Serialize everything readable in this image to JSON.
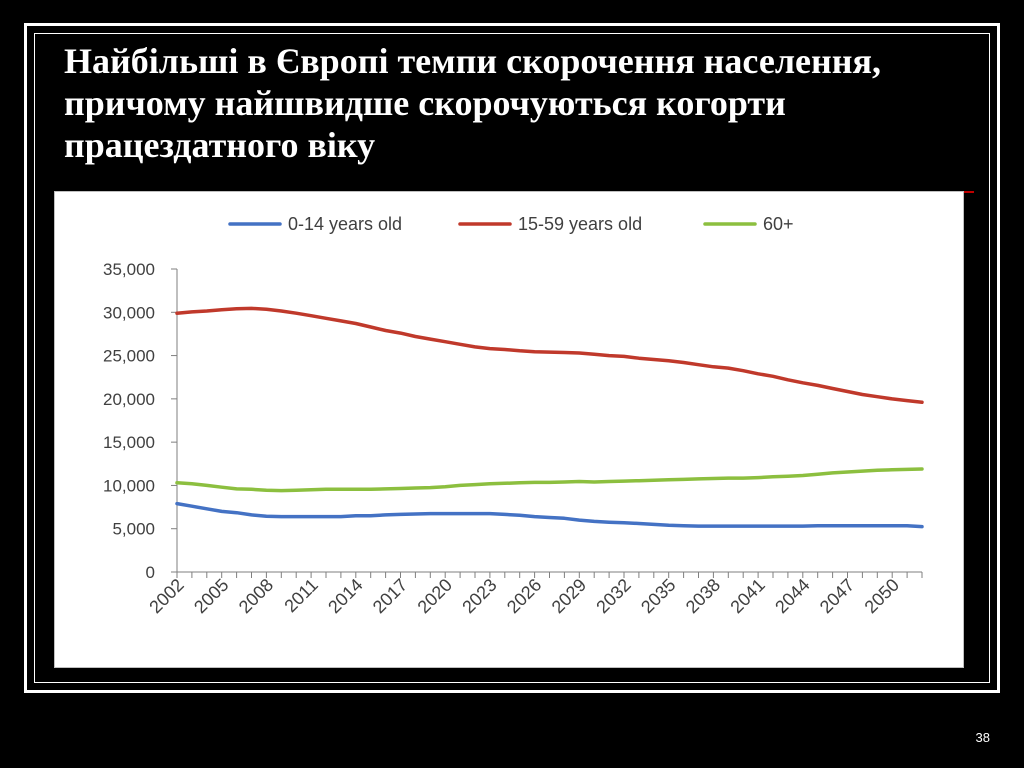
{
  "slide": {
    "title_line1": "Найбільші в Європі темпи скорочення населення,",
    "title_line2": "причому найшвидше скорочуються когорти",
    "title_line3": "працездатного віку",
    "page_number": "38"
  },
  "colors": {
    "background": "#000000",
    "frame": "#ffffff",
    "axis": "#7f7f7f",
    "series_0_14": "#4472c4",
    "series_15_59": "#c0392b",
    "series_60_plus": "#8cbf3f"
  },
  "chart_data": {
    "type": "line",
    "title": "",
    "xlabel": "",
    "ylabel": "",
    "ylim": [
      0,
      35000
    ],
    "yticks": [
      0,
      5000,
      10000,
      15000,
      20000,
      25000,
      30000,
      35000
    ],
    "ytick_labels": [
      "0",
      "5,000",
      "10,000",
      "15,000",
      "20,000",
      "25,000",
      "30,000",
      "35,000"
    ],
    "x": [
      2002,
      2003,
      2004,
      2005,
      2006,
      2007,
      2008,
      2009,
      2010,
      2011,
      2012,
      2013,
      2014,
      2015,
      2016,
      2017,
      2018,
      2019,
      2020,
      2021,
      2022,
      2023,
      2024,
      2025,
      2026,
      2027,
      2028,
      2029,
      2030,
      2031,
      2032,
      2033,
      2034,
      2035,
      2036,
      2037,
      2038,
      2039,
      2040,
      2041,
      2042,
      2043,
      2044,
      2045,
      2046,
      2047,
      2048,
      2049,
      2050,
      2051,
      2052
    ],
    "xtick_labels": [
      "2002",
      "2005",
      "2008",
      "2011",
      "2014",
      "2017",
      "2020",
      "2023",
      "2026",
      "2029",
      "2032",
      "2035",
      "2038",
      "2041",
      "2044",
      "2047",
      "2050"
    ],
    "grid": false,
    "legend_position": "top",
    "series": [
      {
        "name": "0-14 years old",
        "color": "#4472c4",
        "values": [
          7900,
          7600,
          7300,
          7000,
          6850,
          6600,
          6450,
          6400,
          6400,
          6400,
          6400,
          6400,
          6500,
          6500,
          6600,
          6650,
          6700,
          6750,
          6750,
          6750,
          6750,
          6750,
          6650,
          6550,
          6400,
          6300,
          6200,
          6000,
          5850,
          5750,
          5700,
          5600,
          5500,
          5400,
          5350,
          5300,
          5300,
          5300,
          5300,
          5300,
          5300,
          5300,
          5300,
          5350,
          5350,
          5350,
          5350,
          5350,
          5350,
          5350,
          5250
        ]
      },
      {
        "name": "15-59 years old",
        "color": "#c0392b",
        "values": [
          29900,
          30050,
          30150,
          30300,
          30400,
          30450,
          30350,
          30150,
          29900,
          29600,
          29300,
          29000,
          28700,
          28300,
          27900,
          27600,
          27200,
          26900,
          26600,
          26300,
          26000,
          25800,
          25700,
          25550,
          25450,
          25400,
          25350,
          25300,
          25150,
          25000,
          24900,
          24700,
          24550,
          24400,
          24200,
          23950,
          23700,
          23550,
          23250,
          22900,
          22600,
          22200,
          21850,
          21550,
          21200,
          20850,
          20500,
          20250,
          20000,
          19800,
          19600
        ]
      },
      {
        "name": "60+",
        "color": "#8cbf3f",
        "values": [
          10300,
          10200,
          10000,
          9800,
          9600,
          9550,
          9450,
          9400,
          9450,
          9500,
          9550,
          9550,
          9550,
          9550,
          9600,
          9650,
          9700,
          9750,
          9850,
          10000,
          10100,
          10200,
          10250,
          10300,
          10350,
          10350,
          10400,
          10450,
          10400,
          10450,
          10500,
          10550,
          10600,
          10650,
          10700,
          10750,
          10800,
          10850,
          10850,
          10900,
          11000,
          11050,
          11150,
          11300,
          11450,
          11550,
          11650,
          11750,
          11800,
          11850,
          11900
        ]
      }
    ]
  }
}
